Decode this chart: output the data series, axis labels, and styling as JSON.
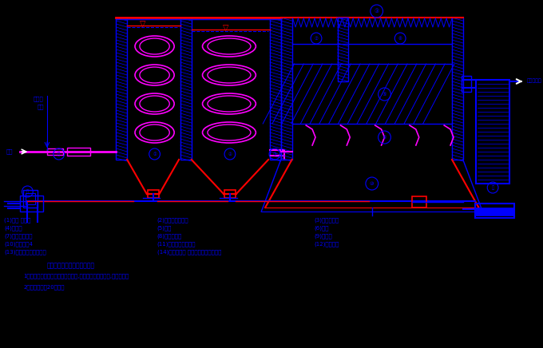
{
  "bg_color": "#000000",
  "blue": "#0000FF",
  "red": "#FF0000",
  "magenta": "#FF00FF",
  "white": "#FFFFFF",
  "notes": [
    "（二）、反应池主要设计数据",
    "1、反应池型式采用循流河至反应池,池分正方型钉箋六室,上下穿孔。",
    "2、总反应时间20分钟。"
  ],
  "labels_col1": [
    "(1)进水 管道口",
    "(4)配水管",
    "(7)三角整聚水槽",
    "(10)反应池斗4",
    "(13)反应池停泥浓缩器阀"
  ],
  "labels_col2": [
    "(2)导管流速反应池",
    "(5)穿管",
    "(8)反应集水槽",
    "(11)反应池停泥快开鄀",
    "(14)管道混合器 来消及集出混合可不用"
  ],
  "labels_col3": [
    "(3)斜管沉淤池",
    "(6)清水",
    "(9)出水管",
    "(12)反应池斗"
  ]
}
